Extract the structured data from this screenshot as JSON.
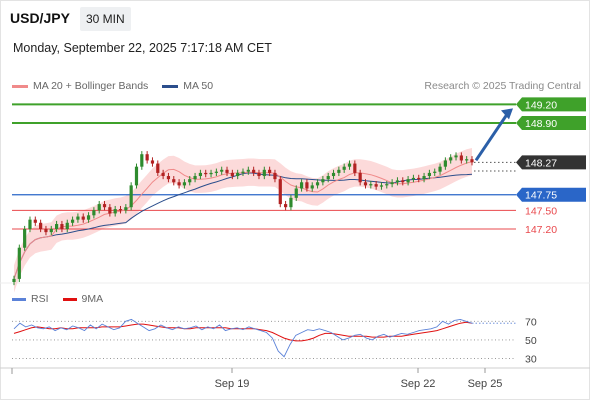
{
  "header": {
    "symbol": "USD/JPY",
    "timeframe": "30 MIN"
  },
  "timestamp": "Monday, September 22, 2025 7:17:18 AM CET",
  "legend": {
    "ma20_label": "MA 20 + Bollinger Bands",
    "ma50_label": "MA 50",
    "credit": "Research © 2025 Trading Central"
  },
  "rsi_legend": {
    "rsi_label": "RSI",
    "ma_label": "9MA"
  },
  "colors": {
    "resistance": "#3fa12a",
    "support": "#e9484c",
    "pivot": "#2a66c8",
    "current": "#333333",
    "ma20": "#f08a8a",
    "ma50": "#2b4e8c",
    "band": "#fbd3d3",
    "candle_up": "#2e8b2e",
    "candle_down": "#b22222",
    "arrow": "#2b5fa8",
    "rsi": "#5b82d8",
    "rsi_ma": "#e01010"
  },
  "chart_data": {
    "type": "candlestick",
    "symbol": "USD/JPY",
    "timeframe": "30 MIN",
    "levels": [
      {
        "price": 149.2,
        "label": "149.20",
        "kind": "resistance"
      },
      {
        "price": 148.9,
        "label": "148.90",
        "kind": "resistance"
      },
      {
        "price": 148.27,
        "label": "148.27",
        "kind": "current"
      },
      {
        "price": 147.75,
        "label": "147.75",
        "kind": "pivot"
      },
      {
        "price": 147.5,
        "label": "147.50",
        "kind": "support"
      },
      {
        "price": 147.2,
        "label": "147.20",
        "kind": "support"
      }
    ],
    "price_ylim": [
      146.35,
      149.35
    ],
    "x_labels": [
      "Sep 19",
      "Sep 22",
      "Sep 25"
    ],
    "closes": [
      146.4,
      146.9,
      147.2,
      147.35,
      147.3,
      147.2,
      147.15,
      147.2,
      147.28,
      147.2,
      147.3,
      147.35,
      147.4,
      147.35,
      147.42,
      147.5,
      147.6,
      147.55,
      147.45,
      147.52,
      147.5,
      147.55,
      147.9,
      148.2,
      148.4,
      148.3,
      148.25,
      148.1,
      148.05,
      148.0,
      147.95,
      147.9,
      147.95,
      148.0,
      148.05,
      148.1,
      148.08,
      148.1,
      148.12,
      148.15,
      148.1,
      148.05,
      148.1,
      148.12,
      148.15,
      148.1,
      148.05,
      148.15,
      148.1,
      148.0,
      147.6,
      147.55,
      147.7,
      147.85,
      147.95,
      147.85,
      147.9,
      147.95,
      148.0,
      148.05,
      148.1,
      148.15,
      148.2,
      148.25,
      148.1,
      147.95,
      147.9,
      147.92,
      147.88,
      147.9,
      147.92,
      147.95,
      147.98,
      147.95,
      148.0,
      148.02,
      148.0,
      148.05,
      148.1,
      148.12,
      148.2,
      148.3,
      148.35,
      148.38,
      148.3,
      148.32,
      148.27
    ],
    "rsi": {
      "ticks": [
        70,
        50,
        30
      ],
      "ylim": [
        22,
        80
      ],
      "values": [
        62,
        68,
        64,
        66,
        63,
        62,
        64,
        60,
        63,
        61,
        65,
        63,
        60,
        66,
        62,
        67,
        64,
        61,
        63,
        70,
        72,
        68,
        64,
        60,
        62,
        66,
        63,
        61,
        64,
        62,
        63,
        65,
        61,
        64,
        62,
        66,
        60,
        62,
        63,
        61,
        64,
        62,
        60,
        58,
        52,
        38,
        32,
        45,
        55,
        58,
        61,
        60,
        62,
        60,
        58,
        54,
        50,
        52,
        55,
        56,
        52,
        50,
        54,
        56,
        53,
        55,
        57,
        56,
        58,
        60,
        61,
        62,
        64,
        70,
        67,
        71,
        72,
        70,
        68
      ],
      "ma_values": [
        57,
        59,
        61,
        63,
        64,
        63,
        62,
        62,
        63,
        62,
        62,
        63,
        63,
        63,
        63,
        64,
        64,
        64,
        64,
        65,
        66,
        67,
        67,
        66,
        65,
        64,
        63,
        63,
        63,
        62,
        62,
        63,
        63,
        63,
        63,
        63,
        63,
        62,
        62,
        62,
        62,
        62,
        61,
        60,
        58,
        55,
        52,
        50,
        49,
        49,
        50,
        52,
        55,
        57,
        57,
        56,
        55,
        54,
        54,
        54,
        54,
        53,
        53,
        53,
        54,
        54,
        54,
        55,
        56,
        57,
        58,
        59,
        60,
        62,
        64,
        66,
        68,
        69,
        68
      ]
    }
  }
}
